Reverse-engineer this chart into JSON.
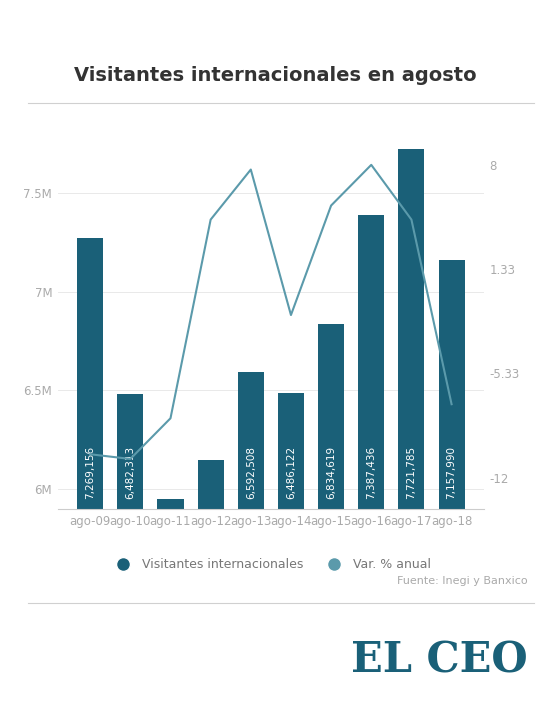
{
  "title": "Visitantes internacionales en agosto",
  "categories": [
    "ago-09",
    "ago-10",
    "ago-11",
    "ago-12",
    "ago-13",
    "ago-14",
    "ago-15",
    "ago-16",
    "ago-17",
    "ago-18"
  ],
  "bar_values": [
    7269156,
    6482313,
    5950000,
    6150000,
    6592508,
    6486122,
    6834619,
    7387436,
    7721785,
    7157990
  ],
  "bar_labels": [
    "7,269,156",
    "6,482,313",
    "",
    "",
    "6,592,508",
    "6,486,122",
    "6,834,619",
    "7,387,436",
    "7,721,785",
    "7,157,990"
  ],
  "line_values": [
    -10.5,
    -10.8,
    -8.2,
    4.5,
    7.7,
    -1.6,
    5.4,
    8.0,
    4.5,
    -7.3
  ],
  "line_yticks": [
    8,
    1.33,
    -5.33,
    -12
  ],
  "bar_color": "#1a6078",
  "line_color": "#5b9aab",
  "ylim_left": [
    5900000,
    7800000
  ],
  "ylim_right": [
    -14,
    10
  ],
  "yticks_left": [
    6000000,
    6500000,
    7000000,
    7500000
  ],
  "ytick_labels_left": [
    "6M",
    "6.5M",
    "7M",
    "7.5M"
  ],
  "source": "Fuente: Inegi y Banxico",
  "legend_bar": "Visitantes internacionales",
  "legend_line": "Var. % anual",
  "bg_color": "#ffffff",
  "title_color": "#333333",
  "tick_color": "#aaaaaa",
  "label_fontsize": 7.5,
  "title_fontsize": 14
}
